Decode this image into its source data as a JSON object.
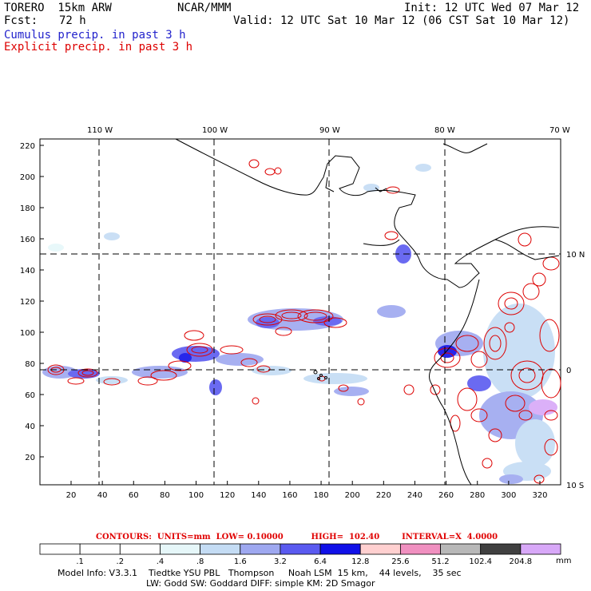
{
  "header": {
    "model": "TORERO  15km ARW",
    "center": "NCAR/MMM",
    "init": "Init: 12 UTC Wed 07 Mar 12",
    "fcst_label": "Fcst:",
    "fcst_value": "72 h",
    "valid": "Valid: 12 UTC Sat 10 Mar 12 (06 CST Sat 10 Mar 12)",
    "field1": "Cumulus precip. in past 3 h",
    "field2": "Explicit precip. in past 3 h",
    "field1_color": "#2222cc",
    "field2_color": "#dd0000"
  },
  "map": {
    "lon_labels": [
      "110 W",
      "100 W",
      "90 W",
      "80 W",
      "70 W"
    ],
    "lat_labels": [
      "10 N",
      "0",
      "10 S"
    ],
    "y_ticks": [
      "220",
      "200",
      "180",
      "160",
      "140",
      "120",
      "100",
      "80",
      "60",
      "40",
      "20"
    ],
    "x_ticks": [
      "20",
      "40",
      "60",
      "80",
      "100",
      "120",
      "140",
      "160",
      "180",
      "200",
      "220",
      "240",
      "260",
      "280",
      "300",
      "320"
    ]
  },
  "contour_info": {
    "contours_label": "CONTOURS:",
    "units": "UNITS=mm",
    "low": "LOW= 0.10000",
    "high": "HIGH=  102.40",
    "interval": "INTERVAL=X  4.0000"
  },
  "colorbar": {
    "unit": "mm",
    "labels": [
      ".1",
      ".2",
      ".4",
      ".8",
      "1.6",
      "3.2",
      "6.4",
      "12.8",
      "25.6",
      "51.2",
      "102.4",
      "204.8"
    ],
    "colors": [
      "#ffffff",
      "#ffffff",
      "#ffffff",
      "#e6f7f9",
      "#c4dcf4",
      "#9ea8f0",
      "#5a5af0",
      "#1010e8",
      "#ffd0d0",
      "#f090c0",
      "#b8b8b8",
      "#404040",
      "#d8a8f8"
    ]
  },
  "footer": {
    "line1": "Model Info: V3.3.1    Tiedtke YSU PBL   Thompson     Noah LSM  15 km,    44 levels,    35 sec",
    "line2": "LW: Godd SW: Goddard DIFF: simple KM: 2D Smagor"
  }
}
